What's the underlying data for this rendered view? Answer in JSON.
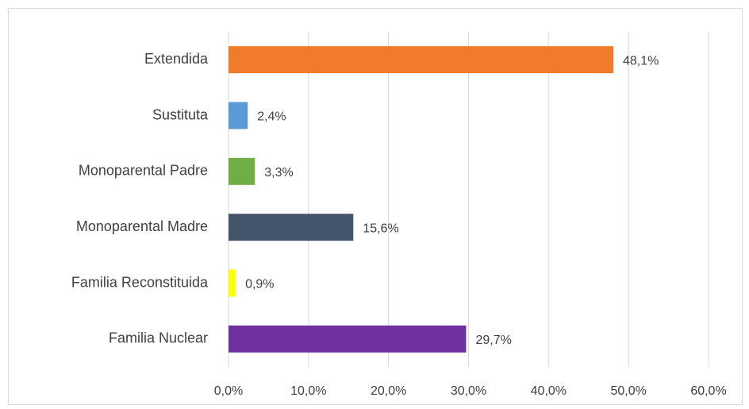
{
  "chart_data": {
    "type": "barh",
    "categories": [
      "Extendida",
      "Sustituta",
      "Monoparental Padre",
      "Monoparental Madre",
      "Familia Reconstituida",
      "Familia Nuclear"
    ],
    "values": [
      48.1,
      2.4,
      3.3,
      15.6,
      0.9,
      29.7
    ],
    "value_labels": [
      "48,1%",
      "2,4%",
      "3,3%",
      "15,6%",
      "0,9%",
      "29,7%"
    ],
    "colors": [
      "#f07b2b",
      "#5b9bd5",
      "#70ad47",
      "#44546a",
      "#ffff00",
      "#7030a0"
    ],
    "xlim": [
      0,
      60
    ],
    "xticks": [
      {
        "value": 0,
        "label": "0,0%"
      },
      {
        "value": 10,
        "label": "10,0%"
      },
      {
        "value": 20,
        "label": "20,0%"
      },
      {
        "value": 30,
        "label": "30,0%"
      },
      {
        "value": 40,
        "label": "40,0%"
      },
      {
        "value": 50,
        "label": "50,0%"
      },
      {
        "value": 60,
        "label": "60,0%"
      }
    ],
    "grid": true
  }
}
